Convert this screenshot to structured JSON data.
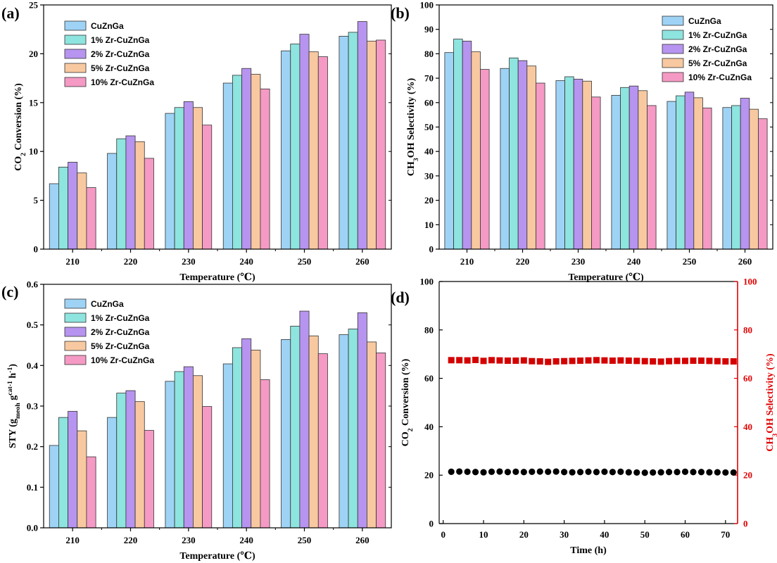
{
  "chart_data": [
    {
      "type": "bar",
      "panel_label": "(a)",
      "categories": [
        "210",
        "220",
        "230",
        "240",
        "250",
        "260"
      ],
      "xlabel": "Temperature (℃)",
      "ylabel": "CO₂ Conversion (%)",
      "ylim": [
        0,
        25
      ],
      "yticks": [
        0,
        5,
        10,
        15,
        20,
        25
      ],
      "grid": false,
      "legend_position": "top-left",
      "series": [
        {
          "name": "CuZnGa",
          "color": "#9ed3f5",
          "values": [
            6.7,
            9.8,
            13.9,
            17.0,
            20.3,
            21.8
          ]
        },
        {
          "name": "1% Zr-CuZnGa",
          "color": "#8ee4de",
          "values": [
            8.4,
            11.3,
            14.5,
            17.8,
            21.0,
            22.2
          ]
        },
        {
          "name": "2% Zr-CuZnGa",
          "color": "#b794f0",
          "values": [
            8.9,
            11.6,
            15.1,
            18.5,
            22.0,
            23.3
          ]
        },
        {
          "name": "5% Zr-CuZnGa",
          "color": "#f8c9a0",
          "values": [
            7.8,
            11.0,
            14.5,
            17.9,
            20.2,
            21.3
          ]
        },
        {
          "name": "10% Zr-CuZnGa",
          "color": "#f59ac4",
          "values": [
            6.3,
            9.3,
            12.7,
            16.4,
            19.7,
            21.4
          ]
        }
      ]
    },
    {
      "type": "bar",
      "panel_label": "(b)",
      "categories": [
        "210",
        "220",
        "230",
        "240",
        "250",
        "260"
      ],
      "xlabel": "Temperature (℃)",
      "ylabel": "CH₃OH Selectivity (%)",
      "ylim": [
        0,
        100
      ],
      "yticks": [
        0,
        10,
        20,
        30,
        40,
        50,
        60,
        70,
        80,
        90,
        100
      ],
      "grid": false,
      "legend_position": "top-right",
      "series": [
        {
          "name": "CuZnGa",
          "color": "#9ed3f5",
          "values": [
            80.5,
            74.0,
            69.0,
            63.0,
            60.5,
            58.0
          ]
        },
        {
          "name": "1% Zr-CuZnGa",
          "color": "#8ee4de",
          "values": [
            86.0,
            78.3,
            70.6,
            66.2,
            62.8,
            58.8
          ]
        },
        {
          "name": "2% Zr-CuZnGa",
          "color": "#b794f0",
          "values": [
            85.2,
            77.2,
            69.6,
            66.8,
            64.3,
            61.8
          ]
        },
        {
          "name": "5% Zr-CuZnGa",
          "color": "#f8c9a0",
          "values": [
            80.8,
            75.0,
            68.8,
            64.9,
            62.0,
            57.3
          ]
        },
        {
          "name": "10% Zr-CuZnGa",
          "color": "#f59ac4",
          "values": [
            73.6,
            68.0,
            62.3,
            58.8,
            57.8,
            53.4
          ]
        }
      ]
    },
    {
      "type": "bar",
      "panel_label": "(c)",
      "categories": [
        "210",
        "220",
        "230",
        "240",
        "250",
        "260"
      ],
      "xlabel": "Temperature (℃)",
      "ylabel": "STY (gₘₑₒₕ gᶜᵃᵗ⁻¹ h⁻¹)",
      "ylim": [
        0.0,
        0.6
      ],
      "yticks": [
        "0.0",
        "0.1",
        "0.2",
        "0.3",
        "0.4",
        "0.5",
        "0.6"
      ],
      "grid": false,
      "legend_position": "top-left",
      "series": [
        {
          "name": "CuZnGa",
          "color": "#9ed3f5",
          "values": [
            0.203,
            0.272,
            0.361,
            0.404,
            0.464,
            0.476
          ]
        },
        {
          "name": "1% Zr-CuZnGa",
          "color": "#8ee4de",
          "values": [
            0.272,
            0.332,
            0.385,
            0.444,
            0.497,
            0.49
          ]
        },
        {
          "name": "2% Zr-CuZnGa",
          "color": "#b794f0",
          "values": [
            0.287,
            0.338,
            0.397,
            0.466,
            0.534,
            0.53
          ]
        },
        {
          "name": "5% Zr-CuZnGa",
          "color": "#f8c9a0",
          "values": [
            0.239,
            0.311,
            0.375,
            0.438,
            0.473,
            0.458
          ]
        },
        {
          "name": "10% Zr-CuZnGa",
          "color": "#f59ac4",
          "values": [
            0.175,
            0.24,
            0.299,
            0.365,
            0.429,
            0.431
          ]
        }
      ]
    },
    {
      "type": "scatter",
      "panel_label": "(d)",
      "xlabel": "Time (h)",
      "ylabel": "CO₂ Conversion (%)",
      "y2label": "CH₃OH Selectivity (%)",
      "xlim": [
        -1,
        73
      ],
      "xticks": [
        0,
        10,
        20,
        30,
        40,
        50,
        60,
        70
      ],
      "ylim": [
        0,
        100
      ],
      "yticks": [
        0,
        20,
        40,
        60,
        80,
        100
      ],
      "y2lim": [
        0,
        100
      ],
      "y2ticks": [
        0,
        20,
        40,
        60,
        80,
        100
      ],
      "y2color": "#e00000",
      "grid": false,
      "series": [
        {
          "axis": "left",
          "marker": "circle",
          "color": "#000000",
          "x": [
            2,
            4,
            6,
            8,
            10,
            12,
            14,
            16,
            18,
            20,
            22,
            24,
            26,
            28,
            30,
            32,
            34,
            36,
            38,
            40,
            42,
            44,
            46,
            48,
            50,
            52,
            54,
            56,
            58,
            60,
            62,
            64,
            66,
            68,
            70,
            72
          ],
          "values": [
            21.4,
            21.5,
            21.4,
            21.3,
            21.2,
            21.4,
            21.5,
            21.3,
            21.4,
            21.3,
            21.4,
            21.5,
            21.4,
            21.5,
            21.3,
            21.2,
            21.3,
            21.4,
            21.3,
            21.4,
            21.3,
            21.4,
            21.2,
            21.1,
            21.0,
            21.1,
            21.2,
            21.3,
            21.3,
            21.4,
            21.3,
            21.3,
            21.2,
            21.2,
            21.1,
            21.1
          ]
        },
        {
          "axis": "right",
          "marker": "square",
          "color": "#d40000",
          "x": [
            2,
            4,
            6,
            8,
            10,
            12,
            14,
            16,
            18,
            20,
            22,
            24,
            26,
            28,
            30,
            32,
            34,
            36,
            38,
            40,
            42,
            44,
            46,
            48,
            50,
            52,
            54,
            56,
            58,
            60,
            62,
            64,
            66,
            68,
            70,
            72
          ],
          "values": [
            67.5,
            67.5,
            67.4,
            67.6,
            67.2,
            67.5,
            67.4,
            67.3,
            67.3,
            67.4,
            67.1,
            67.0,
            66.8,
            67.0,
            67.1,
            67.2,
            67.3,
            67.4,
            67.5,
            67.4,
            67.3,
            67.4,
            67.3,
            67.2,
            67.1,
            67.0,
            66.9,
            67.1,
            67.2,
            67.2,
            67.3,
            67.3,
            67.2,
            67.1,
            67.0,
            67.0
          ]
        }
      ]
    }
  ]
}
